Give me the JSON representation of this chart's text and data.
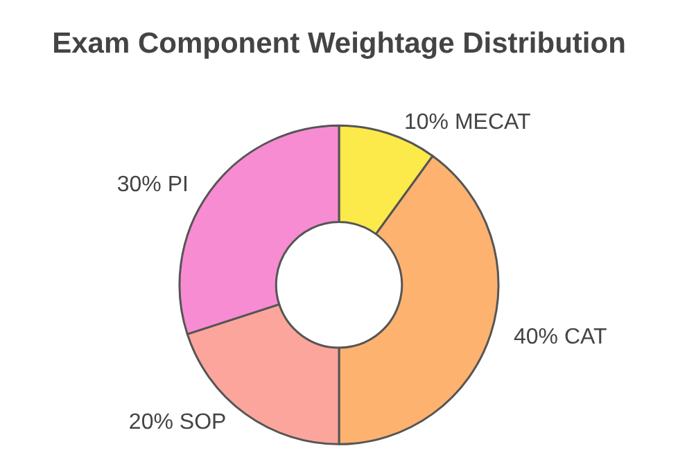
{
  "chart_data": {
    "type": "donut",
    "title": "Exam Component Weightage Distribution",
    "categories": [
      "10% MECAT",
      "40% CAT",
      "20% SOP",
      "30% PI"
    ],
    "values": [
      10,
      40,
      20,
      30
    ],
    "colors": [
      "#fce94a",
      "#fdb26f",
      "#fca59c",
      "#f78cd2"
    ]
  }
}
